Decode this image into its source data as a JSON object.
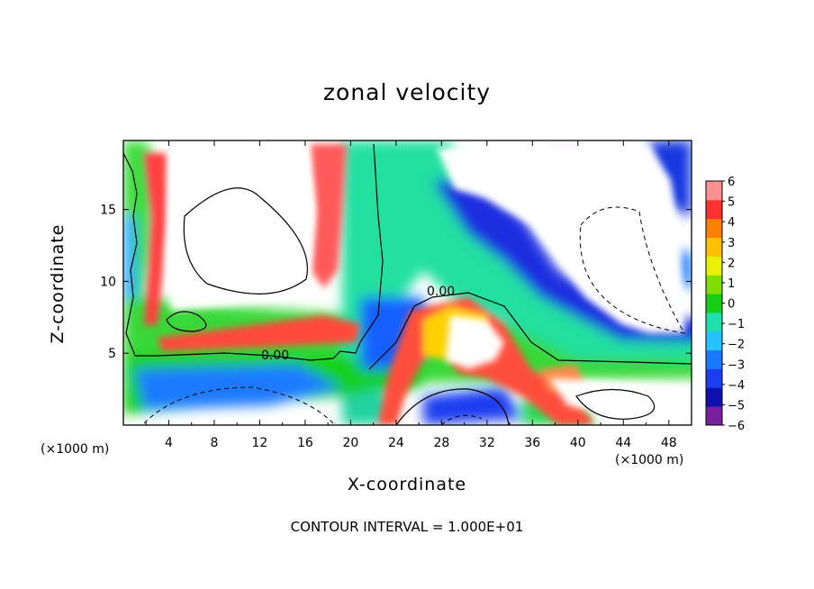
{
  "chart_data": {
    "type": "heatmap",
    "title": "zonal velocity",
    "xlabel": "X-coordinate",
    "ylabel": "Z-coordinate",
    "x_unit": "(×1000 m)",
    "x_ticks": [
      4,
      8,
      12,
      16,
      20,
      24,
      28,
      32,
      36,
      40,
      44,
      48
    ],
    "y_ticks": [
      5,
      10,
      15
    ],
    "xlim": [
      0,
      50
    ],
    "ylim": [
      0,
      19.8
    ],
    "colorbar": {
      "min": -6,
      "max": 6,
      "ticks": [
        6,
        5,
        4,
        3,
        2,
        1,
        0,
        -1,
        -2,
        -3,
        -4,
        -5,
        -6
      ]
    },
    "contour_labels": [
      "0.00",
      "0.00"
    ],
    "annotation": "CONTOUR INTERVAL = 1.000E+01",
    "grid": false
  }
}
